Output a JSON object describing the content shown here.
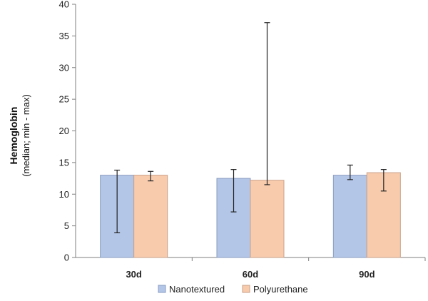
{
  "chart_data": {
    "type": "bar",
    "categories": [
      "30d",
      "60d",
      "90d"
    ],
    "series": [
      {
        "name": "Nanotextured",
        "color": "#b3c6e7",
        "stroke": "#8a9cc0",
        "values": [
          13.0,
          12.5,
          13.0
        ],
        "min": [
          3.9,
          7.2,
          12.3
        ],
        "max": [
          13.8,
          13.9,
          14.6
        ]
      },
      {
        "name": "Polyurethane",
        "color": "#f8cbad",
        "stroke": "#c9a088",
        "values": [
          13.0,
          12.2,
          13.4
        ],
        "min": [
          12.1,
          11.5,
          10.5
        ],
        "max": [
          13.6,
          37.1,
          13.9
        ]
      }
    ],
    "ylabel_main": "Hemoglobin",
    "ylabel_sub": "(median; min - max)",
    "ylim": [
      0,
      40
    ],
    "yticks": [
      0,
      5,
      10,
      15,
      20,
      25,
      30,
      35,
      40
    ],
    "grid": false,
    "legend_position": "bottom"
  }
}
